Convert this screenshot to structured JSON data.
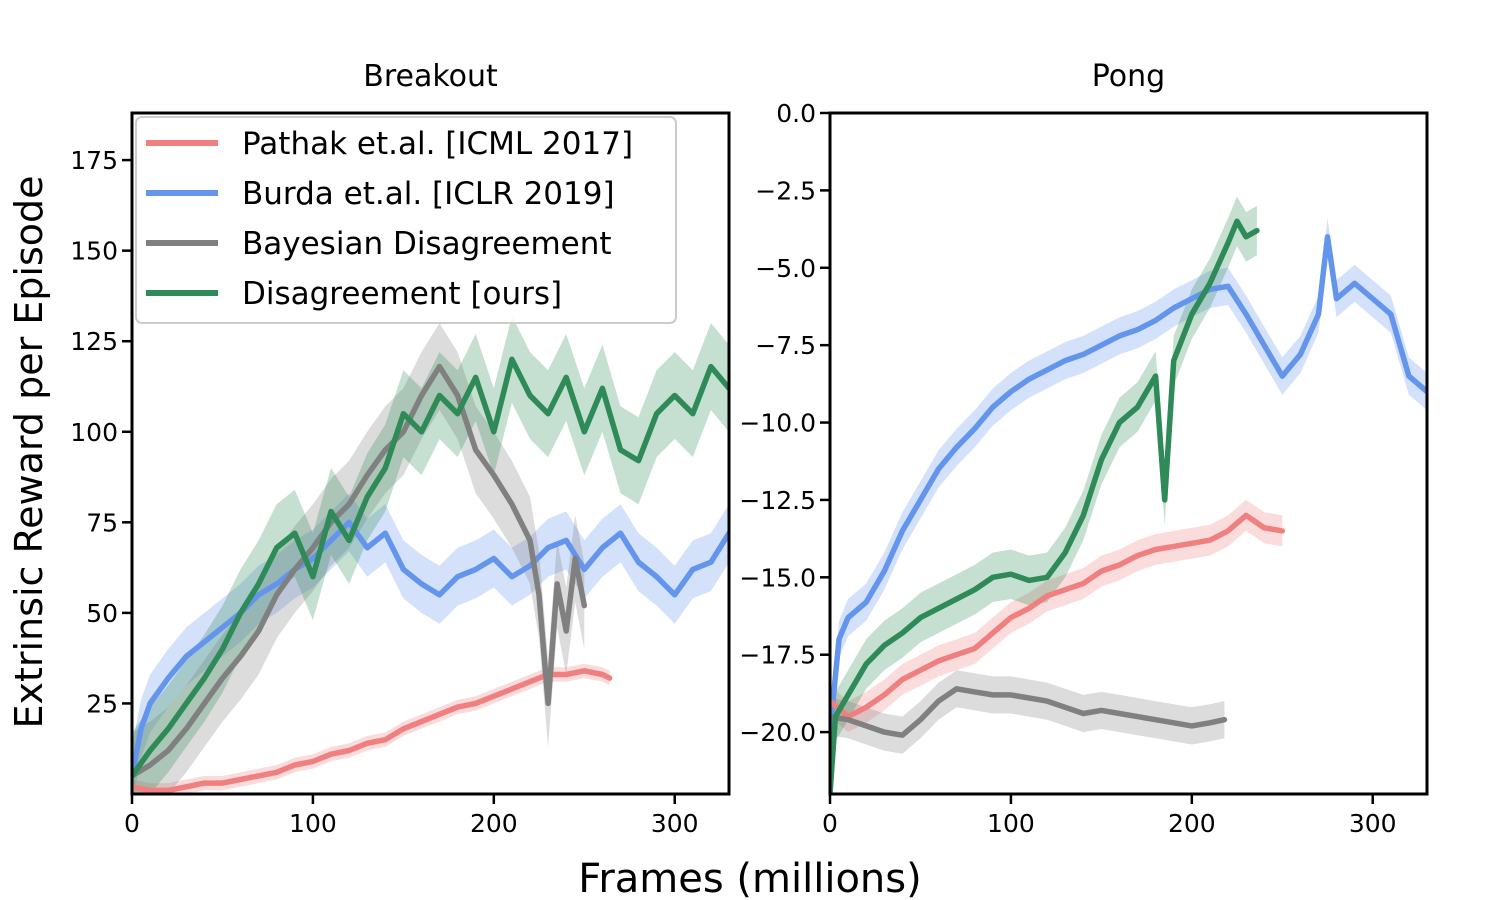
{
  "figure": {
    "xlabel": "Frames (millions)",
    "ylabel": "Extrinsic Reward per Episode"
  },
  "colors": {
    "pathak": "#f08080",
    "burda": "#6495ed",
    "bayesian": "#808080",
    "ours": "#2e8b57"
  },
  "legend": {
    "placement": "upper-left of Breakout panel",
    "entries": [
      {
        "key": "pathak",
        "label": "Pathak et.al. [ICML 2017]"
      },
      {
        "key": "burda",
        "label": "Burda et.al. [ICLR 2019]"
      },
      {
        "key": "bayesian",
        "label": "Bayesian Disagreement"
      },
      {
        "key": "ours",
        "label": "Disagreement [ours]"
      }
    ]
  },
  "chart_data": [
    {
      "type": "line",
      "title": "Breakout",
      "xlim": [
        0,
        330
      ],
      "ylim": [
        0,
        188
      ],
      "xticks": [
        0,
        100,
        200,
        300
      ],
      "yticks": [
        25,
        50,
        75,
        100,
        125,
        150,
        175
      ],
      "grid": false,
      "series": [
        {
          "key": "pathak",
          "name": "Pathak et.al. [ICML 2017]",
          "x": [
            0,
            10,
            20,
            30,
            40,
            50,
            60,
            70,
            80,
            90,
            100,
            110,
            120,
            130,
            140,
            150,
            160,
            170,
            180,
            190,
            200,
            210,
            220,
            230,
            240,
            250,
            260,
            264
          ],
          "y": [
            2,
            1,
            1,
            2,
            3,
            3,
            4,
            5,
            6,
            8,
            9,
            11,
            12,
            14,
            15,
            18,
            20,
            22,
            24,
            25,
            27,
            29,
            31,
            33,
            33,
            34,
            33,
            32
          ],
          "band": 2
        },
        {
          "key": "burda",
          "name": "Burda et.al. [ICLR 2019]",
          "x": [
            0,
            5,
            10,
            20,
            30,
            40,
            50,
            60,
            70,
            80,
            90,
            100,
            110,
            120,
            130,
            140,
            150,
            160,
            170,
            180,
            190,
            200,
            210,
            220,
            230,
            240,
            250,
            260,
            270,
            280,
            290,
            300,
            310,
            320,
            330
          ],
          "y": [
            5,
            18,
            25,
            32,
            38,
            42,
            46,
            50,
            55,
            58,
            62,
            65,
            70,
            75,
            68,
            72,
            62,
            58,
            55,
            60,
            62,
            65,
            60,
            63,
            68,
            70,
            62,
            68,
            72,
            64,
            60,
            55,
            62,
            64,
            72
          ],
          "band": 8
        },
        {
          "key": "bayesian",
          "name": "Bayesian Disagreement",
          "x": [
            0,
            10,
            20,
            30,
            40,
            50,
            60,
            70,
            80,
            90,
            100,
            110,
            120,
            130,
            140,
            150,
            160,
            170,
            180,
            190,
            200,
            210,
            220,
            225,
            230,
            235,
            240,
            245,
            250
          ],
          "y": [
            5,
            8,
            12,
            18,
            25,
            32,
            38,
            45,
            55,
            62,
            68,
            75,
            80,
            88,
            95,
            100,
            110,
            118,
            110,
            95,
            88,
            80,
            70,
            55,
            25,
            58,
            45,
            65,
            52
          ],
          "band": 12
        },
        {
          "key": "ours",
          "name": "Disagreement [ours]",
          "x": [
            0,
            10,
            20,
            30,
            40,
            50,
            60,
            70,
            80,
            90,
            100,
            110,
            120,
            130,
            140,
            150,
            160,
            170,
            180,
            190,
            200,
            210,
            220,
            230,
            240,
            250,
            260,
            270,
            280,
            290,
            300,
            310,
            320,
            330
          ],
          "y": [
            5,
            12,
            18,
            25,
            32,
            40,
            50,
            58,
            68,
            72,
            60,
            78,
            70,
            82,
            90,
            105,
            100,
            110,
            105,
            115,
            100,
            120,
            110,
            105,
            115,
            100,
            112,
            95,
            92,
            105,
            110,
            105,
            118,
            112
          ],
          "band": 12
        }
      ]
    },
    {
      "type": "line",
      "title": "Pong",
      "xlim": [
        0,
        330
      ],
      "ylim": [
        -22,
        0
      ],
      "xticks": [
        0,
        100,
        200,
        300
      ],
      "yticks": [
        0.0,
        -2.5,
        -5.0,
        -7.5,
        -10.0,
        -12.5,
        -15.0,
        -17.5,
        -20.0
      ],
      "ytick_labels": [
        "0.0",
        "−2.5",
        "−5.0",
        "−7.5",
        "−10.0",
        "−12.5",
        "−15.0",
        "−17.5",
        "−20.0"
      ],
      "grid": false,
      "series": [
        {
          "key": "pathak",
          "name": "Pathak et.al. [ICML 2017]",
          "x": [
            0,
            10,
            20,
            30,
            40,
            50,
            60,
            70,
            80,
            90,
            100,
            110,
            120,
            130,
            140,
            150,
            160,
            170,
            180,
            190,
            200,
            210,
            220,
            230,
            240,
            250
          ],
          "y": [
            -19,
            -19.5,
            -19.2,
            -18.8,
            -18.3,
            -18.0,
            -17.7,
            -17.5,
            -17.3,
            -16.8,
            -16.3,
            -16.0,
            -15.6,
            -15.4,
            -15.2,
            -14.8,
            -14.6,
            -14.3,
            -14.1,
            -14.0,
            -13.9,
            -13.8,
            -13.5,
            -13.0,
            -13.4,
            -13.5
          ],
          "band": 0.5
        },
        {
          "key": "burda",
          "name": "Burda et.al. [ICLR 2019]",
          "x": [
            0,
            5,
            10,
            20,
            30,
            40,
            50,
            60,
            70,
            80,
            90,
            100,
            110,
            120,
            130,
            140,
            150,
            160,
            170,
            180,
            190,
            200,
            210,
            220,
            230,
            240,
            250,
            260,
            270,
            275,
            280,
            290,
            300,
            310,
            320,
            330
          ],
          "y": [
            -20,
            -17,
            -16.3,
            -15.8,
            -14.8,
            -13.5,
            -12.5,
            -11.5,
            -10.8,
            -10.2,
            -9.5,
            -9,
            -8.6,
            -8.3,
            -8.0,
            -7.8,
            -7.5,
            -7.2,
            -7.0,
            -6.7,
            -6.3,
            -6.0,
            -5.7,
            -5.6,
            -6.5,
            -7.5,
            -8.5,
            -7.8,
            -6.5,
            -4.0,
            -6.0,
            -5.5,
            -6.0,
            -6.5,
            -8.5,
            -9.0
          ],
          "band": 0.6
        },
        {
          "key": "bayesian",
          "name": "Bayesian Disagreement",
          "x": [
            0,
            10,
            20,
            30,
            40,
            50,
            60,
            70,
            80,
            90,
            100,
            110,
            120,
            130,
            140,
            150,
            160,
            170,
            180,
            190,
            200,
            210,
            218
          ],
          "y": [
            -19.5,
            -19.6,
            -19.8,
            -20.0,
            -20.1,
            -19.6,
            -19.0,
            -18.6,
            -18.7,
            -18.8,
            -18.8,
            -18.9,
            -19.0,
            -19.2,
            -19.4,
            -19.3,
            -19.4,
            -19.5,
            -19.6,
            -19.7,
            -19.8,
            -19.7,
            -19.6
          ],
          "band": 0.6
        },
        {
          "key": "ours",
          "name": "Disagreement [ours]",
          "x": [
            0,
            3,
            10,
            20,
            30,
            40,
            50,
            60,
            70,
            80,
            90,
            100,
            110,
            120,
            130,
            140,
            150,
            160,
            170,
            180,
            185,
            190,
            200,
            210,
            220,
            225,
            230,
            236
          ],
          "y": [
            -22,
            -19.5,
            -18.8,
            -17.8,
            -17.2,
            -16.8,
            -16.3,
            -16.0,
            -15.7,
            -15.4,
            -15.0,
            -14.9,
            -15.1,
            -15.0,
            -14.2,
            -13.0,
            -11.2,
            -10.0,
            -9.5,
            -8.5,
            -12.5,
            -8.0,
            -6.5,
            -5.5,
            -4.2,
            -3.5,
            -4.0,
            -3.8
          ],
          "band": 0.8
        }
      ]
    }
  ]
}
